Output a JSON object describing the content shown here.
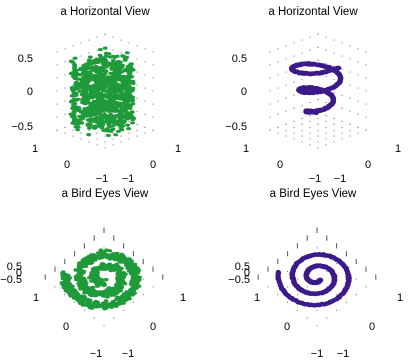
{
  "chart_data": [
    {
      "type": "scatter",
      "title": "a Horizontal View",
      "view": "side",
      "marker_color": "#1f9a3a",
      "distribution": "noisy swiss roll (random 3D points)",
      "x_ticks": [
        "1",
        "0",
        "−1"
      ],
      "y_ticks": [
        "−1",
        "0",
        "1"
      ],
      "z_ticks": [
        "0.5",
        "0",
        "−0.5"
      ],
      "xlim": [
        -1,
        1
      ],
      "ylim": [
        -1,
        1
      ],
      "zlim": [
        -0.7,
        0.7
      ]
    },
    {
      "type": "scatter",
      "title": "a Horizontal View",
      "view": "side",
      "marker_color": "#3d1a8a",
      "distribution": "points along a spiral curve",
      "x_ticks": [
        "1",
        "0",
        "−1"
      ],
      "y_ticks": [
        "−1",
        "0",
        "1"
      ],
      "z_ticks": [
        "0.5",
        "0",
        "−0.5"
      ],
      "xlim": [
        -1,
        1
      ],
      "ylim": [
        -1,
        1
      ],
      "zlim": [
        -0.7,
        0.7
      ]
    },
    {
      "type": "scatter",
      "title": "a Bird Eyes View",
      "view": "top",
      "marker_color": "#1f9a3a",
      "distribution": "noisy swiss roll (random 3D points)",
      "x_ticks": [
        "1",
        "0",
        "−1"
      ],
      "y_ticks": [
        "−1",
        "0",
        "1"
      ],
      "z_ticks": [
        "0.5",
        "0",
        "−0.5"
      ],
      "xlim": [
        -1,
        1
      ],
      "ylim": [
        -1,
        1
      ],
      "zlim": [
        -0.7,
        0.7
      ]
    },
    {
      "type": "scatter",
      "title": "a Bird Eyes View",
      "view": "top",
      "marker_color": "#3d1a8a",
      "distribution": "points along a spiral curve",
      "x_ticks": [
        "1",
        "0",
        "−1"
      ],
      "y_ticks": [
        "−1",
        "0",
        "1"
      ],
      "z_ticks": [
        "0.5",
        "0",
        "−0.5"
      ],
      "xlim": [
        -1,
        1
      ],
      "ylim": [
        -1,
        1
      ],
      "zlim": [
        -0.7,
        0.7
      ]
    }
  ]
}
